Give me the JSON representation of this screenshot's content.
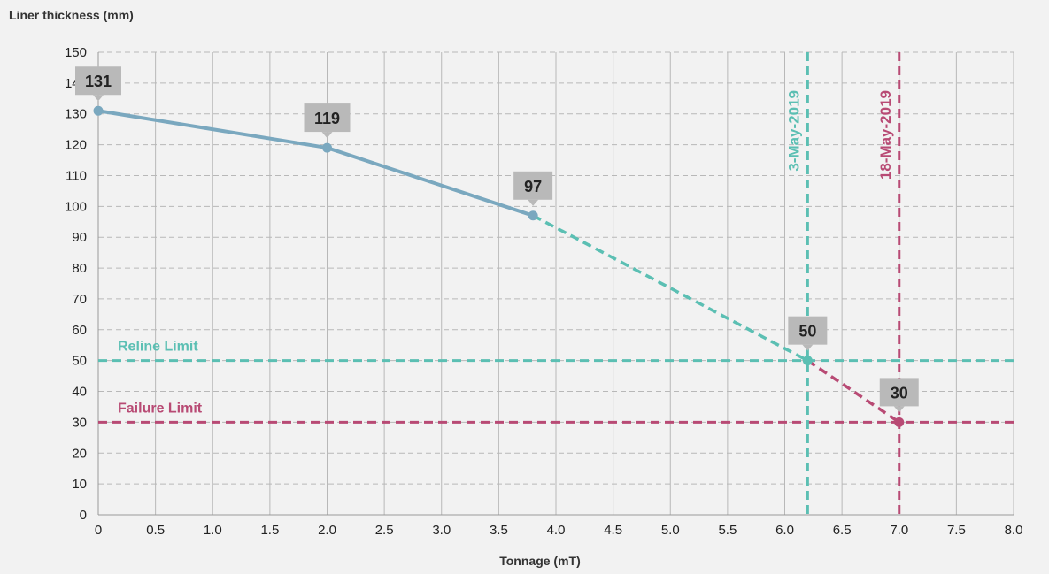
{
  "chart_data": {
    "type": "line",
    "ylabel": "Liner thickness (mm)",
    "xlabel": "Tonnage (mT)",
    "xlim": [
      0,
      8
    ],
    "ylim": [
      0,
      150
    ],
    "x_ticks": [
      "0",
      "0.5",
      "1.0",
      "1.5",
      "2.0",
      "2.5",
      "3.0",
      "3.5",
      "4.0",
      "4.5",
      "5.0",
      "5.5",
      "6.0",
      "6.5",
      "7.0",
      "7.5",
      "8.0"
    ],
    "y_ticks": [
      "0",
      "10",
      "20",
      "30",
      "40",
      "50",
      "60",
      "70",
      "80",
      "90",
      "100",
      "110",
      "120",
      "130",
      "140",
      "150"
    ],
    "grid": true,
    "series": [
      {
        "style": "solid",
        "color": "#7aa8bf",
        "points": [
          [
            0,
            131
          ],
          [
            2.0,
            119
          ],
          [
            3.8,
            97
          ]
        ]
      },
      {
        "style": "dashed",
        "color": "#5bbfb3",
        "points": [
          [
            3.8,
            97
          ],
          [
            6.2,
            50
          ]
        ]
      },
      {
        "style": "dashed",
        "color": "#b84a74",
        "points": [
          [
            6.2,
            50
          ],
          [
            7.0,
            30
          ]
        ]
      }
    ],
    "data_labels": [
      {
        "x": 0,
        "y": 131,
        "text": "131"
      },
      {
        "x": 2.0,
        "y": 119,
        "text": "119"
      },
      {
        "x": 3.8,
        "y": 97,
        "text": "97"
      },
      {
        "x": 6.2,
        "y": 50,
        "text": "50"
      },
      {
        "x": 7.0,
        "y": 30,
        "text": "30"
      }
    ],
    "horizontal_lines": [
      {
        "y": 50,
        "label": "Reline Limit",
        "color": "#5bbfb3"
      },
      {
        "y": 30,
        "label": "Failure Limit",
        "color": "#b84a74"
      }
    ],
    "vertical_lines": [
      {
        "x": 6.2,
        "label": "3-May-2019",
        "color": "#5bbfb3"
      },
      {
        "x": 7.0,
        "label": "18-May-2019",
        "color": "#b84a74"
      }
    ]
  }
}
